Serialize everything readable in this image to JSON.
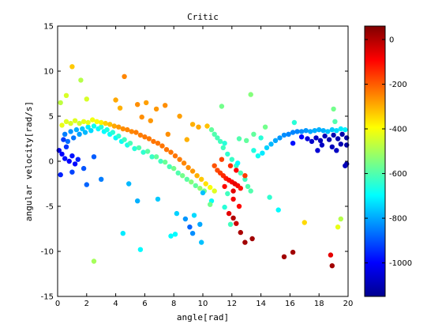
{
  "chart_data": {
    "type": "scatter",
    "title": "Critic",
    "xlabel": "angle[rad]",
    "ylabel": "angular velocity[rad/s]",
    "xlim": [
      0,
      20
    ],
    "ylim": [
      -15,
      15
    ],
    "xticks": [
      "0",
      "2",
      "4",
      "6",
      "8",
      "10",
      "12",
      "14",
      "16",
      "18",
      "20"
    ],
    "yticks": [
      "-15",
      "-10",
      "-5",
      "0",
      "5",
      "10",
      "15"
    ],
    "grid": false,
    "colorbar": {
      "colormap": "jet",
      "range": [
        -1150,
        60
      ],
      "ticks": [
        "0",
        "-200",
        "-400",
        "-600",
        "-800",
        "-1000"
      ]
    },
    "points": [
      [
        0.5,
        3.0,
        -850
      ],
      [
        0.7,
        2.2,
        -870
      ],
      [
        0.9,
        3.3,
        -820
      ],
      [
        1.1,
        2.6,
        -860
      ],
      [
        1.3,
        3.5,
        -790
      ],
      [
        1.5,
        3.0,
        -810
      ],
      [
        1.7,
        3.6,
        -760
      ],
      [
        1.9,
        3.2,
        -780
      ],
      [
        2.1,
        3.8,
        -720
      ],
      [
        2.3,
        3.4,
        -740
      ],
      [
        2.5,
        3.9,
        -680
      ],
      [
        2.8,
        3.6,
        -700
      ],
      [
        3.0,
        3.8,
        -650
      ],
      [
        3.2,
        3.3,
        -700
      ],
      [
        3.4,
        3.5,
        -660
      ],
      [
        3.6,
        3.0,
        -690
      ],
      [
        3.8,
        3.2,
        -650
      ],
      [
        4.0,
        2.6,
        -700
      ],
      [
        4.2,
        2.8,
        -640
      ],
      [
        4.4,
        2.2,
        -680
      ],
      [
        4.6,
        2.4,
        -620
      ],
      [
        4.8,
        1.8,
        -670
      ],
      [
        5.0,
        2.0,
        -610
      ],
      [
        5.3,
        1.4,
        -650
      ],
      [
        5.6,
        1.5,
        -600
      ],
      [
        5.9,
        1.0,
        -640
      ],
      [
        6.2,
        1.1,
        -590
      ],
      [
        6.5,
        0.5,
        -630
      ],
      [
        6.8,
        0.5,
        -580
      ],
      [
        7.1,
        0.0,
        -620
      ],
      [
        7.4,
        -0.1,
        -570
      ],
      [
        7.7,
        -0.6,
        -610
      ],
      [
        8.0,
        -0.8,
        -560
      ],
      [
        8.3,
        -1.3,
        -600
      ],
      [
        8.6,
        -1.6,
        -560
      ],
      [
        8.9,
        -2.0,
        -590
      ],
      [
        9.2,
        -2.3,
        -540
      ],
      [
        9.5,
        -2.7,
        -580
      ],
      [
        9.8,
        -3.0,
        -530
      ],
      [
        10.1,
        -3.3,
        -560
      ],
      [
        0.1,
        1.2,
        -1020
      ],
      [
        0.3,
        0.8,
        -1000
      ],
      [
        0.5,
        0.3,
        -980
      ],
      [
        0.8,
        0.0,
        -1000
      ],
      [
        1.0,
        0.6,
        -980
      ],
      [
        1.2,
        -0.3,
        -990
      ],
      [
        1.4,
        0.2,
        -960
      ],
      [
        0.6,
        1.6,
        -940
      ],
      [
        1.8,
        -0.8,
        -900
      ],
      [
        2.0,
        -2.6,
        -880
      ],
      [
        0.2,
        -1.5,
        -960
      ],
      [
        1.0,
        -1.2,
        -920
      ],
      [
        2.5,
        0.5,
        -890
      ],
      [
        0.4,
        2.4,
        -930
      ],
      [
        0.3,
        4.0,
        -420
      ],
      [
        0.6,
        4.4,
        -430
      ],
      [
        0.9,
        4.2,
        -440
      ],
      [
        1.2,
        4.5,
        -430
      ],
      [
        1.5,
        4.2,
        -450
      ],
      [
        1.8,
        4.4,
        -420
      ],
      [
        2.1,
        4.3,
        -420
      ],
      [
        2.4,
        4.6,
        -410
      ],
      [
        2.7,
        4.4,
        -400
      ],
      [
        3.0,
        4.3,
        -380
      ],
      [
        3.3,
        4.2,
        -340
      ],
      [
        3.6,
        4.1,
        -320
      ],
      [
        3.9,
        3.9,
        -290
      ],
      [
        4.2,
        3.8,
        -270
      ],
      [
        4.5,
        3.6,
        -260
      ],
      [
        4.8,
        3.5,
        -250
      ],
      [
        5.1,
        3.3,
        -250
      ],
      [
        5.4,
        3.2,
        -240
      ],
      [
        5.7,
        2.9,
        -240
      ],
      [
        6.0,
        2.7,
        -235
      ],
      [
        6.3,
        2.5,
        -235
      ],
      [
        6.6,
        2.2,
        -230
      ],
      [
        6.9,
        2.0,
        -230
      ],
      [
        7.2,
        1.7,
        -230
      ],
      [
        7.5,
        1.3,
        -230
      ],
      [
        7.8,
        1.0,
        -230
      ],
      [
        8.1,
        0.6,
        -230
      ],
      [
        8.4,
        0.2,
        -240
      ],
      [
        8.7,
        -0.2,
        -250
      ],
      [
        9.0,
        -0.7,
        -260
      ],
      [
        9.3,
        -1.1,
        -270
      ],
      [
        9.6,
        -1.6,
        -300
      ],
      [
        9.9,
        -2.0,
        -330
      ],
      [
        10.2,
        -2.5,
        -360
      ],
      [
        10.5,
        -2.9,
        -400
      ],
      [
        10.8,
        -3.3,
        -430
      ],
      [
        4.0,
        6.8,
        -290
      ],
      [
        4.6,
        9.4,
        -250
      ],
      [
        1.0,
        10.5,
        -330
      ],
      [
        4.3,
        5.9,
        -300
      ],
      [
        5.5,
        6.3,
        -260
      ],
      [
        6.1,
        6.5,
        -280
      ],
      [
        6.8,
        5.8,
        -270
      ],
      [
        7.4,
        6.2,
        -260
      ],
      [
        8.4,
        5.0,
        -280
      ],
      [
        9.3,
        4.1,
        -300
      ],
      [
        7.6,
        3.0,
        -260
      ],
      [
        6.4,
        4.5,
        -270
      ],
      [
        5.8,
        4.9,
        -260
      ],
      [
        9.7,
        3.8,
        -290
      ],
      [
        10.3,
        3.9,
        -320
      ],
      [
        8.9,
        2.4,
        -300
      ],
      [
        0.2,
        6.5,
        -470
      ],
      [
        0.6,
        7.3,
        -440
      ],
      [
        1.6,
        9.0,
        -480
      ],
      [
        2.0,
        6.9,
        -440
      ],
      [
        10.6,
        3.5,
        -580
      ],
      [
        10.8,
        3.0,
        -600
      ],
      [
        11.0,
        2.6,
        -610
      ],
      [
        11.2,
        2.2,
        -620
      ],
      [
        11.4,
        1.5,
        -620
      ],
      [
        11.7,
        0.8,
        -640
      ],
      [
        12.0,
        0.2,
        -630
      ],
      [
        12.3,
        -0.5,
        -630
      ],
      [
        12.6,
        -1.3,
        -610
      ],
      [
        12.9,
        -2.0,
        -620
      ],
      [
        13.1,
        -2.8,
        -600
      ],
      [
        13.3,
        -3.3,
        -600
      ],
      [
        11.5,
        2.0,
        -650
      ],
      [
        12.4,
        -0.2,
        -700
      ],
      [
        13.5,
        1.2,
        -660
      ],
      [
        13.8,
        0.6,
        -680
      ],
      [
        14.1,
        0.9,
        -720
      ],
      [
        14.4,
        1.5,
        -750
      ],
      [
        14.7,
        1.9,
        -780
      ],
      [
        15.0,
        2.3,
        -800
      ],
      [
        15.3,
        2.6,
        -820
      ],
      [
        15.6,
        2.9,
        -830
      ],
      [
        15.9,
        3.0,
        -840
      ],
      [
        16.2,
        3.2,
        -840
      ],
      [
        16.5,
        3.3,
        -840
      ],
      [
        16.8,
        3.3,
        -830
      ],
      [
        17.1,
        3.4,
        -820
      ],
      [
        17.4,
        3.3,
        -800
      ],
      [
        17.7,
        3.4,
        -790
      ],
      [
        18.0,
        3.5,
        -790
      ],
      [
        18.3,
        3.4,
        -790
      ],
      [
        18.6,
        3.3,
        -770
      ],
      [
        18.9,
        3.5,
        -760
      ],
      [
        19.2,
        3.4,
        -740
      ],
      [
        19.5,
        3.6,
        -720
      ],
      [
        19.8,
        3.5,
        -710
      ],
      [
        14.0,
        2.6,
        -650
      ],
      [
        12.5,
        2.5,
        -600
      ],
      [
        13.0,
        2.3,
        -580
      ],
      [
        13.5,
        3.0,
        -580
      ],
      [
        14.3,
        3.8,
        -560
      ],
      [
        13.3,
        7.4,
        -540
      ],
      [
        11.3,
        6.1,
        -560
      ],
      [
        16.3,
        4.3,
        -650
      ],
      [
        19.0,
        5.8,
        -560
      ],
      [
        19.1,
        4.4,
        -600
      ],
      [
        10.8,
        -0.5,
        -190
      ],
      [
        11.0,
        -1.0,
        -180
      ],
      [
        11.2,
        -1.3,
        -160
      ],
      [
        11.4,
        -1.6,
        -140
      ],
      [
        11.6,
        -1.9,
        -120
      ],
      [
        11.8,
        -2.1,
        -100
      ],
      [
        12.0,
        -2.3,
        -80
      ],
      [
        12.2,
        -2.5,
        -60
      ],
      [
        12.4,
        -2.7,
        -80
      ],
      [
        12.6,
        -3.0,
        -110
      ],
      [
        11.9,
        -0.5,
        -140
      ],
      [
        12.3,
        -1.0,
        -90
      ],
      [
        12.1,
        -3.3,
        -60
      ],
      [
        11.5,
        -2.8,
        -100
      ],
      [
        12.9,
        -1.6,
        -160
      ],
      [
        11.3,
        0.2,
        -170
      ],
      [
        12.1,
        -4.2,
        -80
      ],
      [
        12.5,
        -5.0,
        -100
      ],
      [
        12.1,
        -6.3,
        0
      ],
      [
        12.6,
        -7.9,
        10
      ],
      [
        12.9,
        -9.0,
        20
      ],
      [
        13.4,
        -8.6,
        20
      ],
      [
        12.3,
        -6.9,
        -30
      ],
      [
        11.8,
        -5.8,
        -60
      ],
      [
        15.6,
        -10.6,
        20
      ],
      [
        16.2,
        -10.1,
        20
      ],
      [
        18.9,
        -11.6,
        20
      ],
      [
        18.8,
        -10.4,
        -60
      ],
      [
        17.0,
        -6.8,
        -350
      ],
      [
        19.5,
        -6.4,
        -480
      ],
      [
        19.3,
        -7.3,
        -420
      ],
      [
        17.2,
        2.5,
        -1040
      ],
      [
        17.5,
        2.2,
        -1060
      ],
      [
        17.8,
        2.6,
        -1070
      ],
      [
        18.1,
        2.3,
        -1080
      ],
      [
        18.4,
        2.8,
        -1080
      ],
      [
        18.7,
        2.4,
        -1090
      ],
      [
        19.0,
        2.9,
        -1090
      ],
      [
        19.3,
        2.5,
        -1090
      ],
      [
        19.6,
        3.0,
        -1100
      ],
      [
        19.9,
        2.6,
        -1100
      ],
      [
        18.2,
        1.8,
        -1070
      ],
      [
        18.9,
        1.6,
        -1080
      ],
      [
        19.5,
        1.9,
        -1090
      ],
      [
        19.9,
        1.8,
        -1100
      ],
      [
        19.9,
        -0.3,
        -1100
      ],
      [
        19.8,
        -0.5,
        -1080
      ],
      [
        17.9,
        1.2,
        -1050
      ],
      [
        19.2,
        1.2,
        -1070
      ],
      [
        16.8,
        2.7,
        -1000
      ],
      [
        16.2,
        2.0,
        -980
      ],
      [
        9.4,
        -6.0,
        -740
      ],
      [
        9.1,
        -7.3,
        -880
      ],
      [
        9.8,
        -7.0,
        -800
      ],
      [
        9.3,
        -8.0,
        -830
      ],
      [
        8.1,
        -8.1,
        -700
      ],
      [
        7.8,
        -8.3,
        -700
      ],
      [
        9.9,
        -9.0,
        -770
      ],
      [
        5.7,
        -9.8,
        -700
      ],
      [
        2.5,
        -11.1,
        -500
      ],
      [
        4.5,
        -8.0,
        -720
      ],
      [
        8.2,
        -5.8,
        -750
      ],
      [
        10.6,
        -4.4,
        -690
      ],
      [
        11.5,
        -5.1,
        -650
      ],
      [
        10.5,
        -4.8,
        -560
      ],
      [
        11.9,
        -7.0,
        -620
      ],
      [
        6.9,
        -4.2,
        -760
      ],
      [
        4.9,
        -2.5,
        -780
      ],
      [
        3.0,
        -2.0,
        -850
      ],
      [
        5.5,
        -4.4,
        -790
      ],
      [
        8.8,
        -6.4,
        -820
      ],
      [
        10.0,
        -3.5,
        -770
      ],
      [
        14.6,
        -4.0,
        -640
      ],
      [
        15.2,
        -5.4,
        -700
      ],
      [
        11.7,
        -3.6,
        -620
      ]
    ]
  }
}
